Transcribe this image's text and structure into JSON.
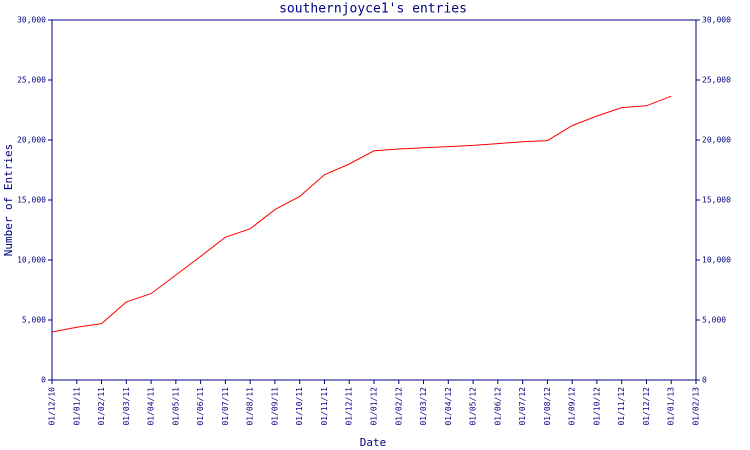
{
  "chart_data": {
    "type": "line",
    "title": "southernjoyce1's entries",
    "xlabel": "Date",
    "ylabel": "Number of Entries",
    "categories": [
      "01/12/10",
      "01/01/11",
      "01/02/11",
      "01/03/11",
      "01/04/11",
      "01/05/11",
      "01/06/11",
      "01/07/11",
      "01/08/11",
      "01/09/11",
      "01/10/11",
      "01/11/11",
      "01/12/11",
      "01/01/12",
      "01/02/12",
      "01/03/12",
      "01/04/12",
      "01/05/12",
      "01/06/12",
      "01/07/12",
      "01/08/12",
      "01/09/12",
      "01/10/12",
      "01/11/12",
      "01/12/12",
      "01/01/13",
      "01/02/13"
    ],
    "series": [
      {
        "color": "#ff0000",
        "values": [
          4000,
          4400,
          4700,
          6500,
          7200,
          8750,
          10300,
          11900,
          12600,
          14200,
          15300,
          17100,
          18000,
          19100,
          19250,
          19350,
          19450,
          19550,
          19700,
          19850,
          19950,
          21200,
          22000,
          22700,
          22850,
          23650,
          null
        ]
      }
    ],
    "ylim": [
      0,
      30000
    ],
    "yticks": [
      0,
      {
        "value": 5000,
        "label": "5,000"
      },
      {
        "value": 10000,
        "label": "10,000"
      },
      {
        "value": 15000,
        "label": "15,000"
      },
      {
        "value": 20000,
        "label": "20,000"
      },
      {
        "value": 25000,
        "label": "25,000"
      },
      {
        "value": 30000,
        "label": "30,000"
      }
    ],
    "axis_color": "#000080",
    "right_axis": true
  }
}
